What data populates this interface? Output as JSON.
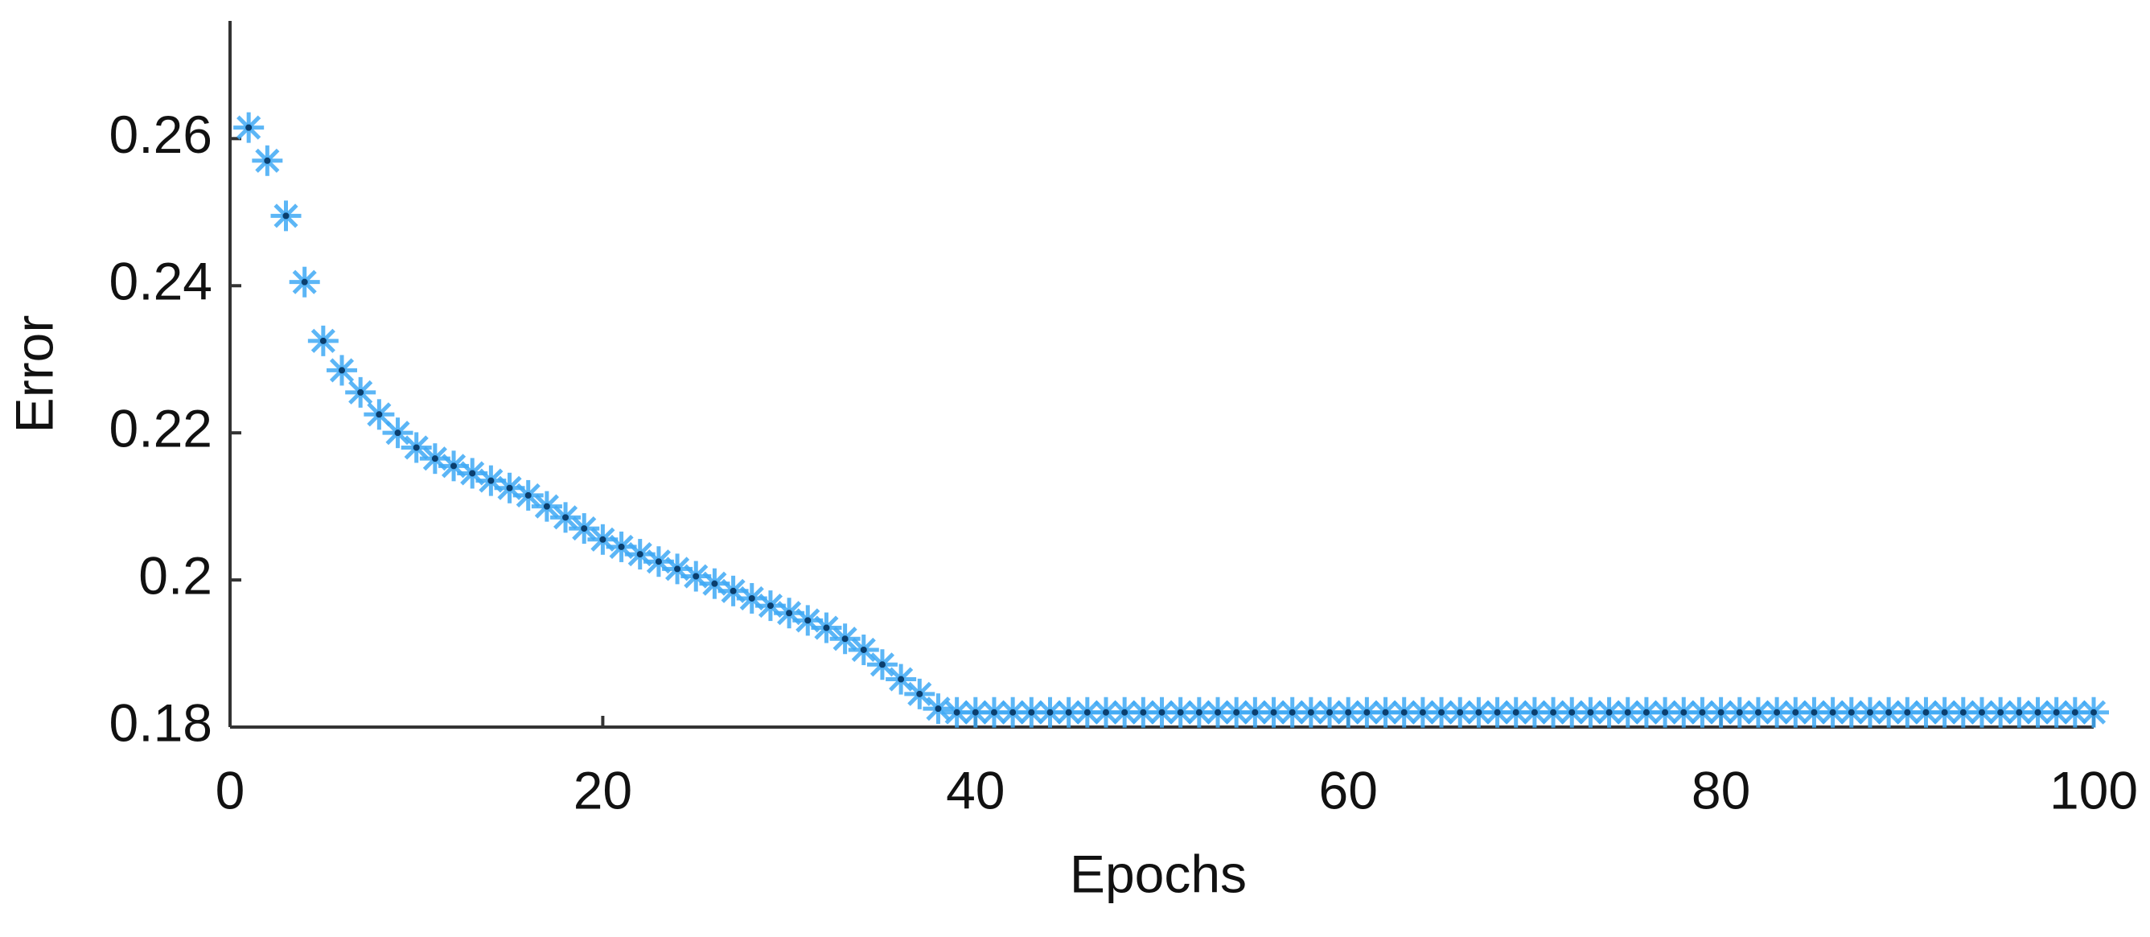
{
  "chart_data": {
    "type": "scatter",
    "x_label": "Epochs",
    "y_label": "Error",
    "xlim": [
      0,
      100
    ],
    "ylim": [
      0.18,
      0.276
    ],
    "xticks": [
      0,
      20,
      40,
      60,
      80,
      100
    ],
    "yticks": [
      0.18,
      0.2,
      0.22,
      0.24,
      0.26
    ],
    "marker": "asterisk",
    "series": [
      {
        "color": "#3fa9f5",
        "x": [
          1,
          2,
          3,
          4,
          5,
          6,
          7,
          8,
          9,
          10,
          11,
          12,
          13,
          14,
          15,
          16,
          17,
          18,
          19,
          20,
          21,
          22,
          23,
          24,
          25,
          26,
          27,
          28,
          29,
          30,
          31,
          32,
          33,
          34,
          35,
          36,
          37,
          38,
          39,
          40,
          41,
          42,
          43,
          44,
          45,
          46,
          47,
          48,
          49,
          50,
          51,
          52,
          53,
          54,
          55,
          56,
          57,
          58,
          59,
          60,
          61,
          62,
          63,
          64,
          65,
          66,
          67,
          68,
          69,
          70,
          71,
          72,
          73,
          74,
          75,
          76,
          77,
          78,
          79,
          80,
          81,
          82,
          83,
          84,
          85,
          86,
          87,
          88,
          89,
          90,
          91,
          92,
          93,
          94,
          95,
          96,
          97,
          98,
          99,
          100
        ],
        "values": [
          0.2615,
          0.257,
          0.2495,
          0.2405,
          0.2325,
          0.2285,
          0.2255,
          0.2225,
          0.22,
          0.218,
          0.2165,
          0.2155,
          0.2145,
          0.2135,
          0.2125,
          0.2115,
          0.21,
          0.2085,
          0.207,
          0.2055,
          0.2045,
          0.2035,
          0.2025,
          0.2015,
          0.2005,
          0.1995,
          0.1985,
          0.1975,
          0.1965,
          0.1955,
          0.1945,
          0.1935,
          0.192,
          0.1905,
          0.1885,
          0.1865,
          0.1845,
          0.1825,
          0.182,
          0.182,
          0.182,
          0.182,
          0.182,
          0.182,
          0.182,
          0.182,
          0.182,
          0.182,
          0.182,
          0.182,
          0.182,
          0.182,
          0.182,
          0.182,
          0.182,
          0.182,
          0.182,
          0.182,
          0.182,
          0.182,
          0.182,
          0.182,
          0.182,
          0.182,
          0.182,
          0.182,
          0.182,
          0.182,
          0.182,
          0.182,
          0.182,
          0.182,
          0.182,
          0.182,
          0.182,
          0.182,
          0.182,
          0.182,
          0.182,
          0.182,
          0.182,
          0.182,
          0.182,
          0.182,
          0.182,
          0.182,
          0.182,
          0.182,
          0.182,
          0.182,
          0.182,
          0.182,
          0.182,
          0.182,
          0.182,
          0.182,
          0.182,
          0.182,
          0.182,
          0.182
        ]
      }
    ]
  }
}
